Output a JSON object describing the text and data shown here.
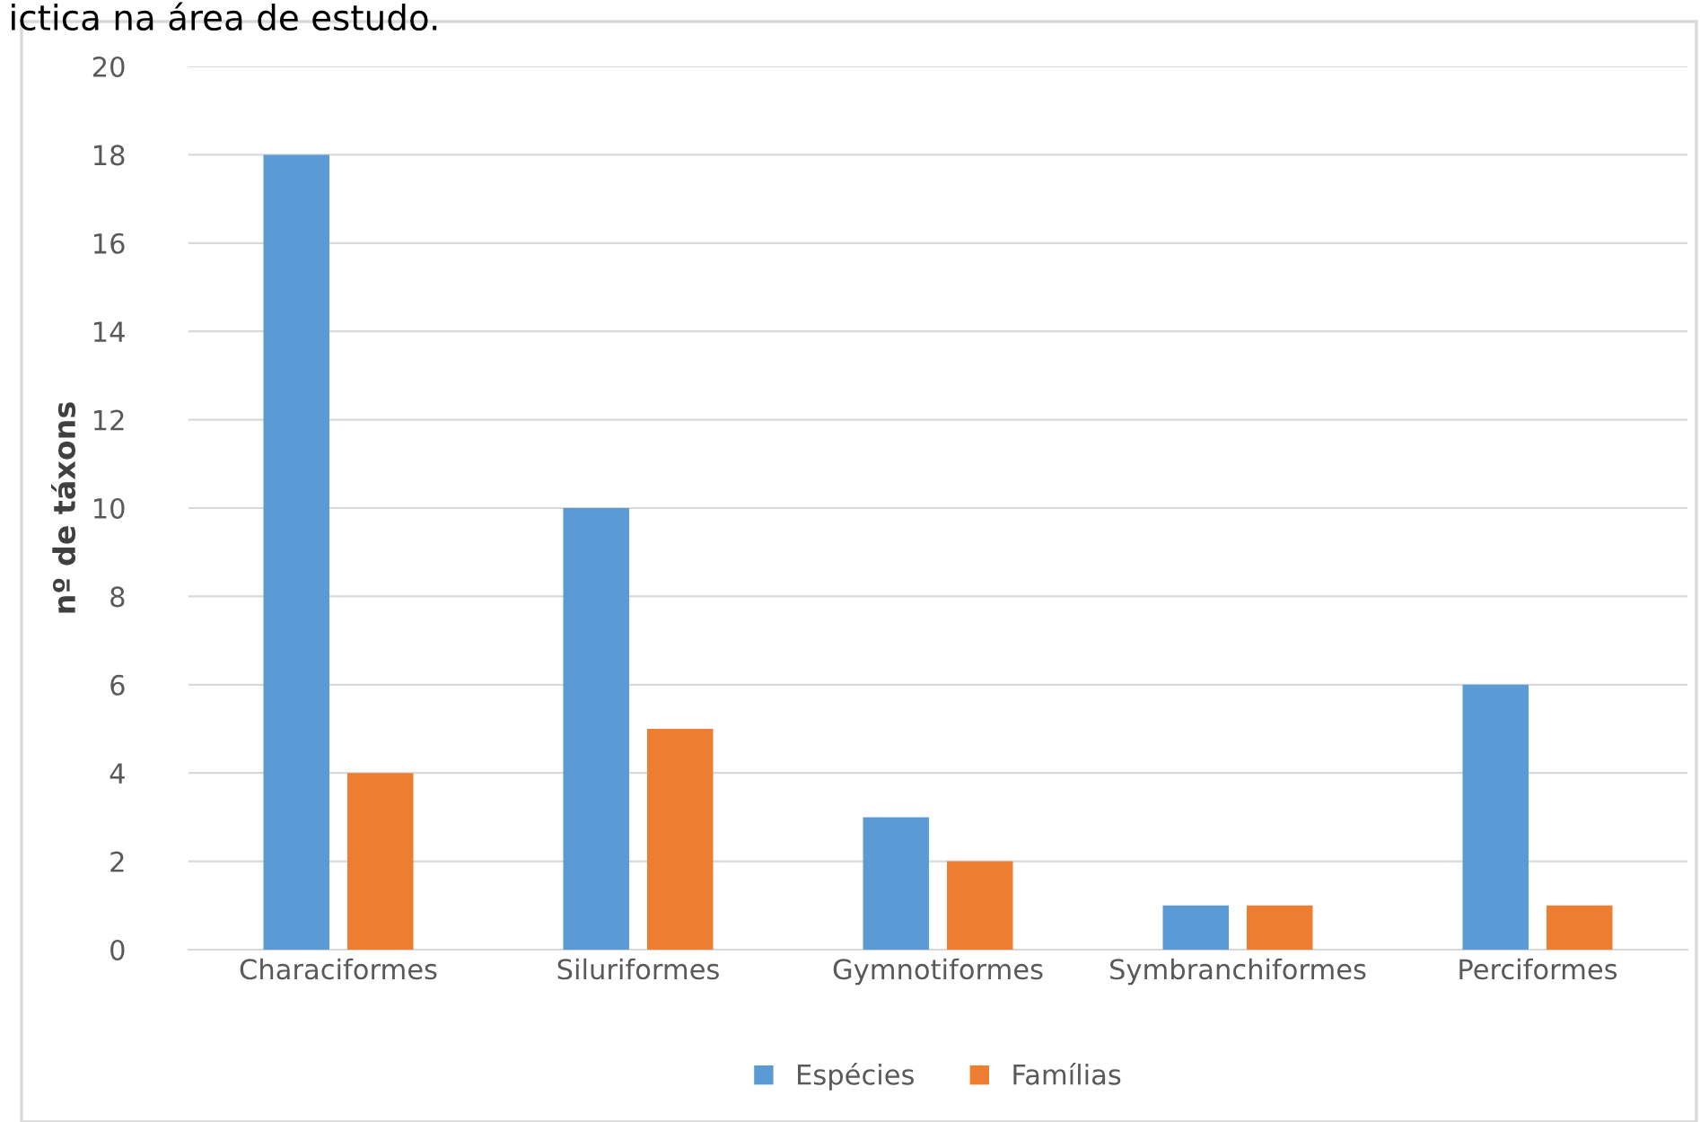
{
  "chart_data": {
    "type": "bar",
    "ylabel": "nº de táxons",
    "annotations": [
      "ictica na área de estudo."
    ],
    "categories": [
      "Characiformes",
      "Siluriformes",
      "Gymnotiformes",
      "Symbranchiformes",
      "Perciformes"
    ],
    "series": [
      {
        "name": "Espécies",
        "color": "#5b9bd5",
        "values": [
          18,
          10,
          3,
          1,
          6
        ]
      },
      {
        "name": "Famílias",
        "color": "#ed7d31",
        "values": [
          4,
          5,
          2,
          1,
          1
        ]
      }
    ],
    "ylim": [
      0,
      20
    ],
    "yticks": [
      0,
      2,
      4,
      6,
      8,
      10,
      12,
      14,
      16,
      18,
      20
    ],
    "grid": "y",
    "legend": "bottom"
  }
}
